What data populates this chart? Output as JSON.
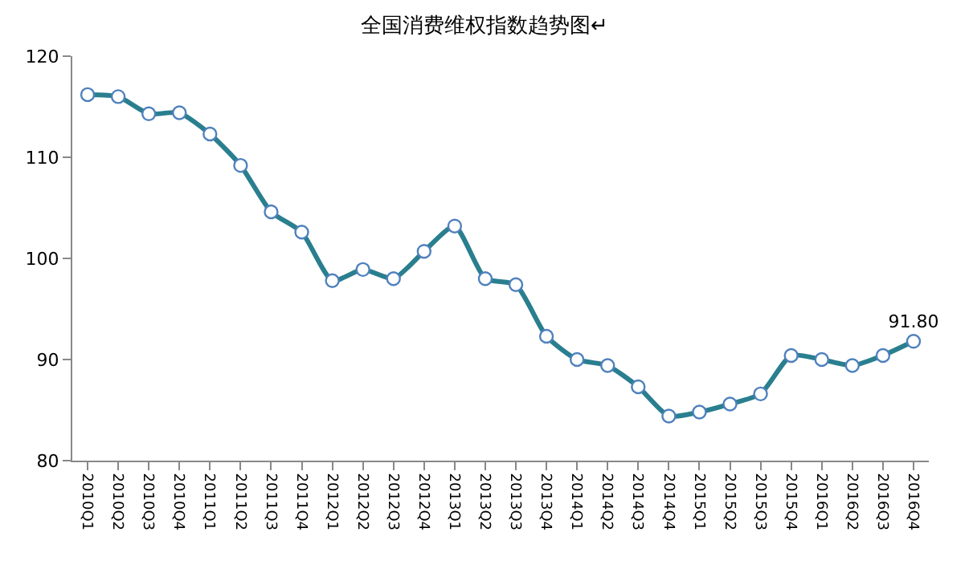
{
  "chart_data": {
    "type": "line",
    "title": "全国消费维权指数趋势图↵",
    "categories": [
      "2010Q1",
      "2010Q2",
      "2010Q3",
      "2010Q4",
      "2011Q1",
      "2011Q2",
      "2011Q3",
      "2011Q4",
      "2012Q1",
      "2012Q2",
      "2012Q3",
      "2012Q4",
      "2013Q1",
      "2013Q2",
      "2013Q3",
      "2013Q4",
      "2014Q1",
      "2014Q2",
      "2014Q3",
      "2014Q4",
      "2015Q1",
      "2015Q2",
      "2015Q3",
      "2015Q4",
      "2016Q1",
      "2016Q2",
      "2016Q3",
      "2016Q4"
    ],
    "series": [
      {
        "color": "#2a7f8f",
        "values": [
          116.2,
          116.0,
          114.3,
          114.4,
          112.3,
          109.2,
          104.6,
          102.6,
          97.8,
          98.9,
          98.0,
          100.7,
          103.2,
          98.0,
          97.4,
          92.3,
          90.0,
          89.4,
          87.3,
          84.4,
          84.8,
          85.6,
          86.6,
          90.4,
          90.0,
          89.4,
          90.4,
          91.8
        ],
        "value_labels": [
          null,
          null,
          null,
          null,
          null,
          null,
          null,
          null,
          null,
          null,
          null,
          null,
          null,
          null,
          null,
          null,
          null,
          null,
          null,
          null,
          null,
          null,
          null,
          null,
          null,
          null,
          null,
          "91.80"
        ]
      }
    ],
    "ylim": [
      80,
      120
    ],
    "yticks": [
      80,
      90,
      100,
      110,
      120
    ],
    "marker": "circle",
    "line_style": "solid"
  }
}
